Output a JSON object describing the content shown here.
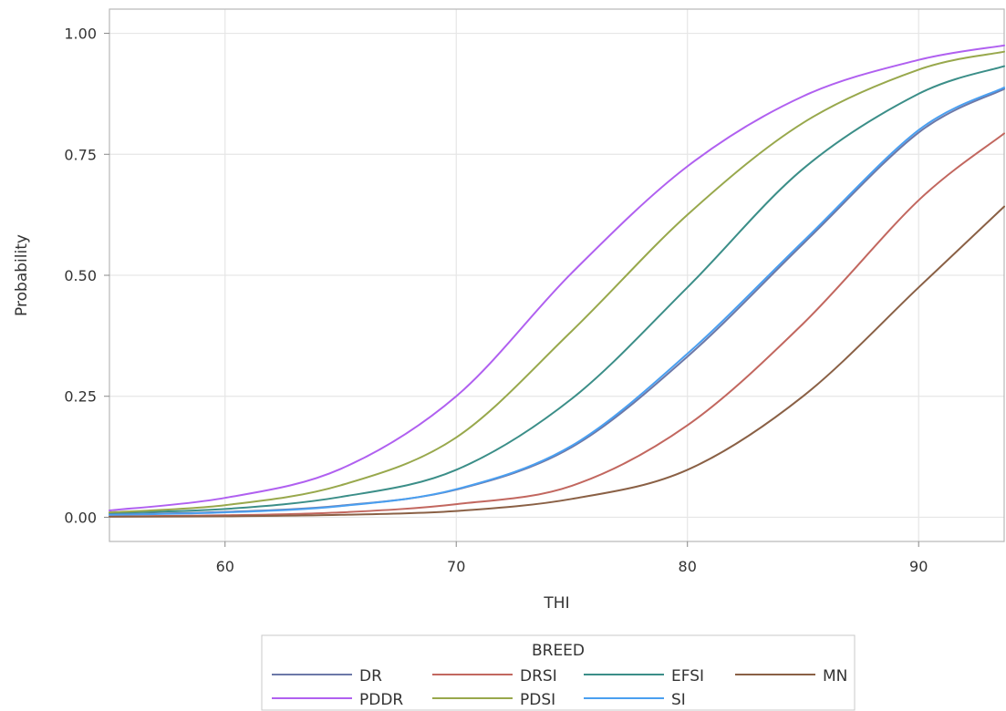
{
  "chart_data": {
    "type": "line",
    "title": "",
    "xlabel": "THI",
    "ylabel": "Probability",
    "xlim": [
      55,
      93.7
    ],
    "ylim": [
      -0.05,
      1.05
    ],
    "x_ticks": [
      60,
      70,
      80,
      90
    ],
    "x_tick_labels": [
      "60",
      "70",
      "80",
      "90"
    ],
    "y_ticks": [
      0,
      0.25,
      0.5,
      0.75,
      1
    ],
    "y_tick_labels": [
      "0.00",
      "0.25",
      "0.50",
      "0.75",
      "1.00"
    ],
    "grid": true,
    "legend": {
      "title": "BREED",
      "position": "bottom-center",
      "columns": 4
    },
    "x": [
      55,
      60,
      65,
      70,
      75,
      80,
      85,
      90,
      93.7
    ],
    "series": [
      {
        "name": "DR",
        "color": "#6c78a8",
        "values": [
          0.006,
          0.011,
          0.024,
          0.057,
          0.145,
          0.332,
          0.565,
          0.795,
          0.885
        ]
      },
      {
        "name": "DRSI",
        "color": "#c2675f",
        "values": [
          0.002,
          0.004,
          0.01,
          0.027,
          0.065,
          0.19,
          0.4,
          0.655,
          0.793
        ]
      },
      {
        "name": "EFSI",
        "color": "#3b8e88",
        "values": [
          0.009,
          0.017,
          0.042,
          0.098,
          0.245,
          0.475,
          0.72,
          0.875,
          0.932
        ]
      },
      {
        "name": "MN",
        "color": "#8a6045",
        "values": [
          0.001,
          0.002,
          0.005,
          0.013,
          0.038,
          0.098,
          0.25,
          0.475,
          0.642
        ]
      },
      {
        "name": "PDDR",
        "color": "#b060f0",
        "values": [
          0.014,
          0.04,
          0.1,
          0.25,
          0.505,
          0.725,
          0.87,
          0.945,
          0.975
        ]
      },
      {
        "name": "PDSI",
        "color": "#98a84c",
        "values": [
          0.01,
          0.025,
          0.066,
          0.165,
          0.385,
          0.625,
          0.815,
          0.925,
          0.962
        ]
      },
      {
        "name": "SI",
        "color": "#4a9ff0",
        "values": [
          0.005,
          0.01,
          0.023,
          0.058,
          0.148,
          0.338,
          0.57,
          0.8,
          0.888
        ]
      }
    ]
  }
}
